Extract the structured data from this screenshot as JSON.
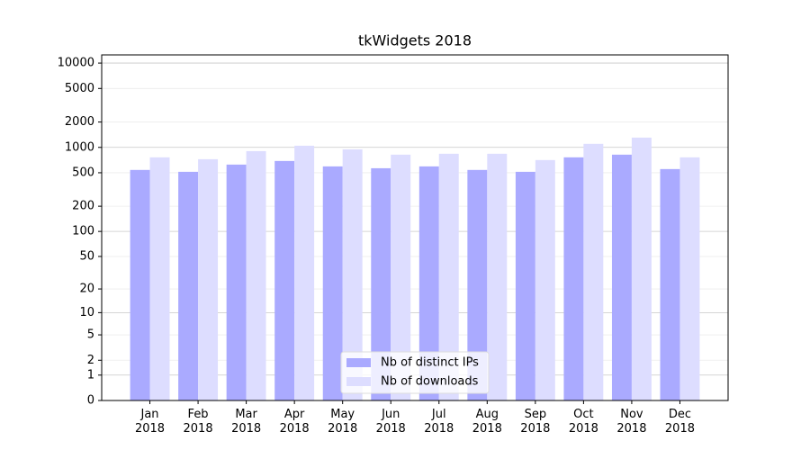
{
  "chart_data": {
    "type": "bar",
    "title": "tkWidgets 2018",
    "categories": [
      "Jan 2018",
      "Feb 2018",
      "Mar 2018",
      "Apr 2018",
      "May 2018",
      "Jun 2018",
      "Jul 2018",
      "Aug 2018",
      "Sep 2018",
      "Oct 2018",
      "Nov 2018",
      "Dec 2018"
    ],
    "series": [
      {
        "name": "Nb of distinct IPs",
        "color": "#aaaaff",
        "values": [
          540,
          513,
          625,
          690,
          595,
          566,
          595,
          540,
          513,
          762,
          820,
          553
        ]
      },
      {
        "name": "Nb of downloads",
        "color": "#ddddff",
        "values": [
          762,
          724,
          903,
          1047,
          948,
          820,
          840,
          840,
          707,
          1102,
          1306,
          762
        ]
      }
    ],
    "yscale": "log1p",
    "ylim": [
      0,
      12500
    ],
    "yticks": [
      0,
      1,
      2,
      5,
      10,
      20,
      50,
      100,
      200,
      500,
      1000,
      2000,
      5000,
      10000
    ],
    "grid": true,
    "legend": "lower center"
  }
}
